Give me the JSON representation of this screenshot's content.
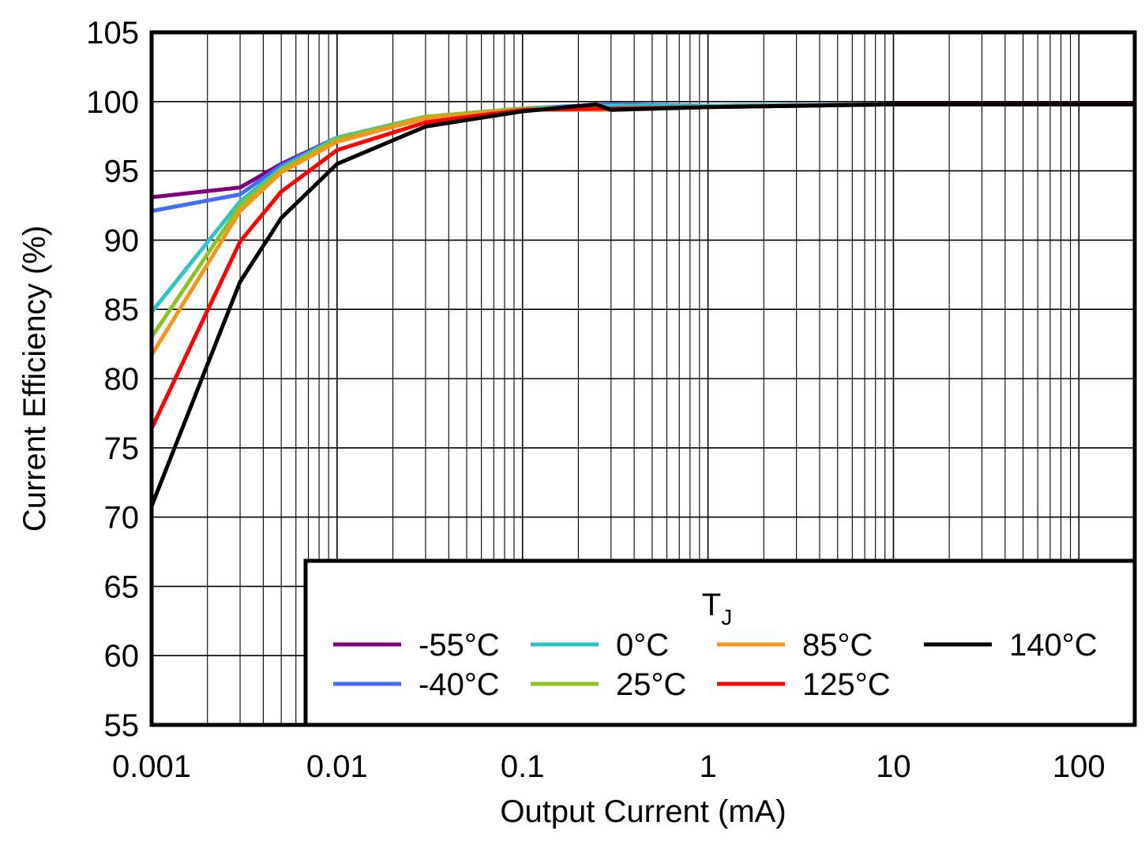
{
  "chart_data": {
    "type": "line",
    "xlabel": "Output Current (mA)",
    "ylabel": "Current Efficiency (%)",
    "x_scale": "log",
    "xlim": [
      0.001,
      200
    ],
    "ylim": [
      55,
      105
    ],
    "x_ticks": [
      "0.001",
      "0.01",
      "0.1",
      "1",
      "10",
      "100"
    ],
    "y_ticks": [
      "55",
      "60",
      "65",
      "70",
      "75",
      "80",
      "85",
      "90",
      "95",
      "100",
      "105"
    ],
    "grid": true,
    "legend": {
      "title": "T",
      "title_sub": "J",
      "position": "bottom-right"
    },
    "series": [
      {
        "name": "-55°C",
        "color": "#800080",
        "x": [
          0.001,
          0.003,
          0.005,
          0.01,
          0.03,
          0.1,
          0.3,
          1,
          10,
          200
        ],
        "y": [
          93.1,
          93.8,
          95.5,
          97.4,
          98.9,
          99.5,
          99.8,
          99.7,
          99.8,
          99.8
        ]
      },
      {
        "name": "-40°C",
        "color": "#3f6ff6",
        "x": [
          0.001,
          0.003,
          0.005,
          0.01,
          0.03,
          0.1,
          0.3,
          1,
          10,
          200
        ],
        "y": [
          92.1,
          93.3,
          95.4,
          97.4,
          98.9,
          99.5,
          99.8,
          99.7,
          99.8,
          99.8
        ]
      },
      {
        "name": "0°C",
        "color": "#2ec4c8",
        "x": [
          0.001,
          0.003,
          0.005,
          0.01,
          0.03,
          0.1,
          0.3,
          1,
          10,
          200
        ],
        "y": [
          84.8,
          92.8,
          95.2,
          97.4,
          98.9,
          99.5,
          99.7,
          99.7,
          99.8,
          99.8
        ]
      },
      {
        "name": "25°C",
        "color": "#8dc21f",
        "x": [
          0.001,
          0.003,
          0.005,
          0.01,
          0.03,
          0.1,
          0.25,
          0.3,
          1,
          10,
          200
        ],
        "y": [
          83.0,
          92.5,
          95.1,
          97.3,
          98.9,
          99.5,
          99.5,
          99.4,
          99.6,
          99.8,
          99.8
        ]
      },
      {
        "name": "85°C",
        "color": "#f7941d",
        "x": [
          0.001,
          0.003,
          0.005,
          0.01,
          0.03,
          0.1,
          0.3,
          1,
          10,
          200
        ],
        "y": [
          81.7,
          92.1,
          94.9,
          97.1,
          98.8,
          99.4,
          99.4,
          99.6,
          99.8,
          99.8
        ]
      },
      {
        "name": "125°C",
        "color": "#ff0000",
        "x": [
          0.001,
          0.003,
          0.005,
          0.01,
          0.03,
          0.1,
          0.3,
          1,
          10,
          200
        ],
        "y": [
          76.4,
          89.9,
          93.5,
          96.5,
          98.5,
          99.4,
          99.5,
          99.6,
          99.8,
          99.8
        ]
      },
      {
        "name": "140°C",
        "color": "#000000",
        "x": [
          0.001,
          0.003,
          0.005,
          0.01,
          0.03,
          0.1,
          0.25,
          0.3,
          1,
          10,
          200
        ],
        "y": [
          70.8,
          87.0,
          91.6,
          95.5,
          98.2,
          99.3,
          99.8,
          99.4,
          99.6,
          99.8,
          99.8
        ]
      }
    ]
  }
}
